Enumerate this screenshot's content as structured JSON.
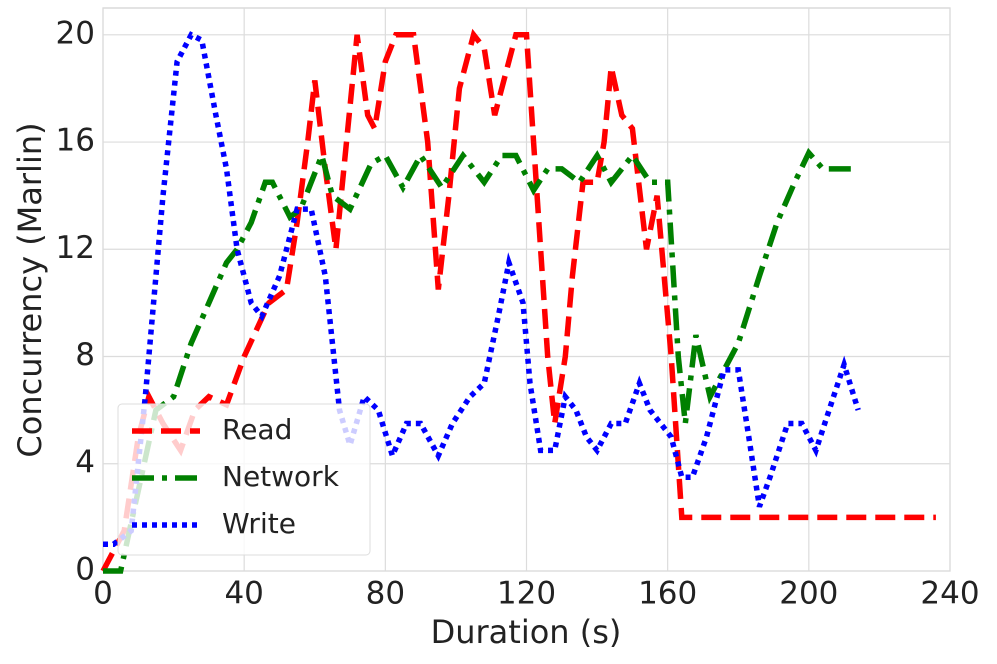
{
  "chart_data": {
    "type": "line",
    "xlabel": "Duration (s)",
    "ylabel": "Concurrency (Marlin)",
    "xlim": [
      0,
      240
    ],
    "ylim": [
      0,
      21
    ],
    "xticks": [
      0,
      40,
      80,
      120,
      160,
      200,
      240
    ],
    "yticks": [
      0,
      4,
      8,
      12,
      16,
      20
    ],
    "grid": true,
    "legend": "lower left",
    "series": [
      {
        "name": "Read",
        "color": "#ff0000",
        "style": "dashed",
        "x": [
          0,
          2,
          6,
          10,
          13,
          17,
          22,
          26,
          30,
          35,
          40,
          47,
          52,
          55,
          58,
          60,
          63,
          66,
          69,
          72,
          75,
          77,
          80,
          83,
          88,
          92,
          95,
          98,
          101,
          105,
          108,
          111,
          114,
          117,
          120,
          123,
          126,
          128,
          131,
          133,
          136,
          140,
          142,
          144,
          147,
          150,
          154,
          157,
          161,
          164,
          236
        ],
        "values": [
          0,
          0.5,
          1.5,
          5,
          6.5,
          5.5,
          4.5,
          6,
          6.5,
          6.2,
          8,
          10,
          10.5,
          13,
          16,
          18.3,
          15,
          12,
          16,
          20,
          17,
          16.5,
          19,
          20,
          20,
          16,
          10.5,
          14,
          18,
          20,
          19.5,
          17,
          18.5,
          20,
          20,
          14,
          8,
          5.5,
          8,
          11,
          14.5,
          14.5,
          16,
          18.8,
          17,
          16.5,
          12,
          14,
          8,
          2,
          2
        ]
      },
      {
        "name": "Network",
        "color": "#008000",
        "style": "dashdot",
        "x": [
          0,
          5,
          10,
          15,
          20,
          25,
          30,
          35,
          38,
          42,
          46,
          48,
          53,
          56,
          59,
          62,
          65,
          70,
          76,
          80,
          85,
          90,
          96,
          102,
          108,
          113,
          117,
          122,
          126,
          130,
          135,
          140,
          144,
          150,
          155,
          160,
          163,
          165,
          168,
          172,
          176,
          180,
          186,
          191,
          196,
          200,
          204,
          213
        ],
        "values": [
          0,
          0,
          3,
          6,
          6.5,
          8.5,
          10,
          11.5,
          12,
          13,
          14.5,
          14.5,
          13.2,
          13.5,
          14.5,
          15.5,
          14,
          13.5,
          15.2,
          15.5,
          14.3,
          15.5,
          14.3,
          15.5,
          14.5,
          15.5,
          15.5,
          14.2,
          15,
          15,
          14.5,
          15.5,
          14.5,
          15.5,
          14.5,
          14.5,
          8,
          5.5,
          8.8,
          6.5,
          7.5,
          8.5,
          11,
          13,
          14.5,
          15.6,
          15,
          15
        ]
      },
      {
        "name": "Write",
        "color": "#0000ff",
        "style": "dotted",
        "x": [
          0,
          3,
          8,
          12,
          17,
          21,
          25,
          28,
          32,
          35,
          38,
          42,
          45,
          50,
          55,
          59,
          63,
          67,
          70,
          74,
          78,
          82,
          86,
          90,
          95,
          99,
          104,
          108,
          112,
          115,
          119,
          121,
          124,
          128,
          131,
          134,
          137,
          140,
          144,
          148,
          152,
          155,
          158,
          161,
          164,
          167,
          171,
          176,
          180,
          183,
          186,
          189,
          194,
          198,
          202,
          207,
          210,
          214
        ],
        "values": [
          1,
          1,
          1.5,
          6.5,
          14,
          19,
          20,
          19.8,
          17,
          15,
          12,
          10,
          9.5,
          11,
          13.5,
          13.5,
          11,
          6,
          4.7,
          6.5,
          6,
          4.3,
          5.5,
          5.5,
          4.3,
          5.5,
          6.5,
          7,
          9.5,
          11.5,
          10,
          7,
          4.5,
          4.5,
          6.5,
          6,
          5,
          4.5,
          5.5,
          5.5,
          7,
          6,
          5.5,
          5,
          3.5,
          3.5,
          5,
          7.5,
          7.5,
          5,
          2.4,
          3.5,
          5.5,
          5.5,
          4.5,
          6.5,
          7.7,
          6
        ]
      }
    ]
  }
}
